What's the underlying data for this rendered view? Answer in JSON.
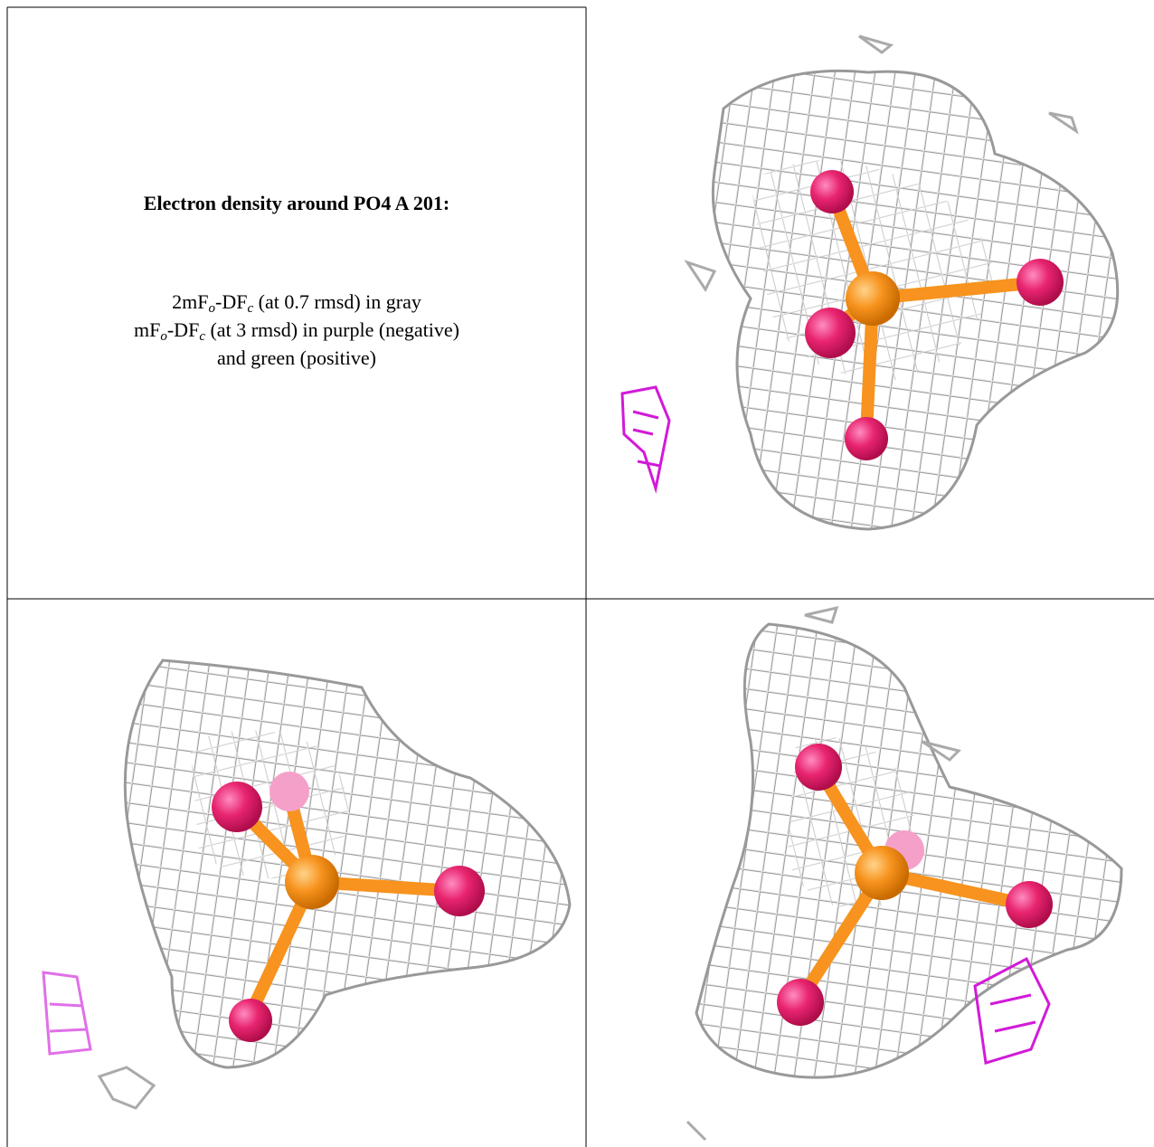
{
  "caption": {
    "title": "Electron density around PO4 A 201:",
    "lines": [
      [
        "2mF",
        "o",
        "-DF",
        "c",
        " (at 0.7 rmsd) in gray"
      ],
      [
        "mF",
        "o",
        "-DF",
        "c",
        " (at 3 rmsd) in purple (negative)"
      ],
      [
        "and green (positive)"
      ]
    ]
  }
}
